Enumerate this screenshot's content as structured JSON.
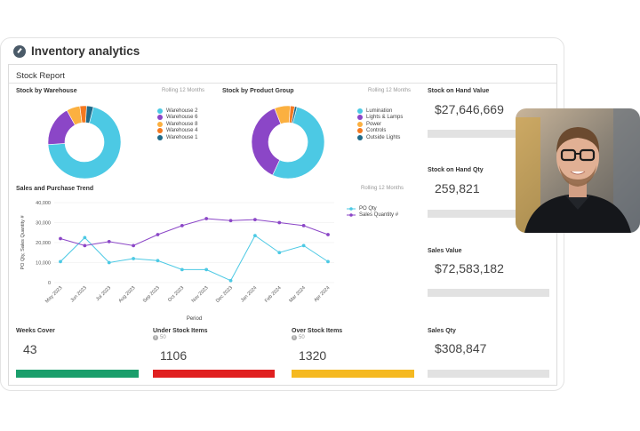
{
  "app": {
    "title": "Inventory analytics",
    "icon": "gauge-icon"
  },
  "report": {
    "title": "Stock Report"
  },
  "warehouse": {
    "title": "Stock by Warehouse",
    "period": "Rolling 12 Months",
    "legend": [
      {
        "label": "Warehouse 2",
        "color": "#4cc9e4"
      },
      {
        "label": "Warehouse 6",
        "color": "#8b46c7"
      },
      {
        "label": "Warehouse 8",
        "color": "#fbb040"
      },
      {
        "label": "Warehouse 4",
        "color": "#f47920"
      },
      {
        "label": "Warehouse 1",
        "color": "#1f6b8a"
      }
    ]
  },
  "product": {
    "title": "Stock by Product Group",
    "period": "Rolling 12 Months",
    "legend": [
      {
        "label": "Lumination",
        "color": "#4cc9e4"
      },
      {
        "label": "Lights & Lamps",
        "color": "#8b46c7"
      },
      {
        "label": "Power",
        "color": "#fbb040"
      },
      {
        "label": "Controls",
        "color": "#f47920"
      },
      {
        "label": "Outside Lights",
        "color": "#1f6b8a"
      }
    ]
  },
  "trend": {
    "title": "Sales and Purchase Trend",
    "period": "Rolling 12 Months",
    "ylabel": "PO Qty, Sales Quantity #",
    "xlabel": "Period",
    "legend": [
      {
        "label": "PO Qty",
        "color": "#4cc9e4"
      },
      {
        "label": "Sales Quantity #",
        "color": "#8b46c7"
      }
    ]
  },
  "kpis": {
    "stock_on_hand_value": {
      "label": "Stock on Hand Value",
      "value": "$27,646,669"
    },
    "stock_on_hand_qty": {
      "label": "Stock on Hand Qty",
      "value": "259,821"
    },
    "sales_value": {
      "label": "Sales Value",
      "value": "$72,583,182"
    },
    "sales_qty": {
      "label": "Sales Qty",
      "value": "$308,847"
    },
    "weeks_cover": {
      "label": "Weeks Cover",
      "value": "43",
      "color": "#1a9e6b"
    },
    "under_stock": {
      "label": "Under Stock Items",
      "sub": "50",
      "value": "1106",
      "color": "#e02020"
    },
    "over_stock": {
      "label": "Over Stock Items",
      "sub": "50",
      "value": "1320",
      "color": "#f5b921"
    }
  },
  "chart_data": [
    {
      "type": "pie",
      "title": "Stock by Warehouse",
      "categories": [
        "Warehouse 2",
        "Warehouse 6",
        "Warehouse 8",
        "Warehouse 4",
        "Warehouse 1"
      ],
      "values": [
        70,
        18,
        6,
        3,
        3
      ]
    },
    {
      "type": "pie",
      "title": "Stock by Product Group",
      "categories": [
        "Lumination",
        "Lights & Lamps",
        "Power",
        "Controls",
        "Outside Lights"
      ],
      "values": [
        53,
        37,
        7,
        2,
        1
      ]
    },
    {
      "type": "line",
      "title": "Sales and Purchase Trend",
      "xlabel": "Period",
      "ylabel": "PO Qty, Sales Quantity #",
      "ylim": [
        0,
        40000
      ],
      "yticks": [
        "0",
        "10,000",
        "20,000",
        "30,000",
        "40,000"
      ],
      "x": [
        "May 2023",
        "Jun 2023",
        "Jul 2023",
        "Aug 2023",
        "Sep 2023",
        "Oct 2023",
        "Nov 2023",
        "Dec 2023",
        "Jan 2024",
        "Feb 2024",
        "Mar 2024",
        "Apr 2024"
      ],
      "series": [
        {
          "name": "PO Qty",
          "color": "#4cc9e4",
          "values": [
            10500,
            22500,
            10000,
            12000,
            11000,
            6500,
            6500,
            1000,
            23500,
            15000,
            18500,
            10500
          ]
        },
        {
          "name": "Sales Quantity #",
          "color": "#8b46c7",
          "values": [
            22000,
            18500,
            20500,
            18500,
            24000,
            28500,
            32000,
            31000,
            31500,
            30000,
            28500,
            24000
          ]
        }
      ]
    }
  ]
}
